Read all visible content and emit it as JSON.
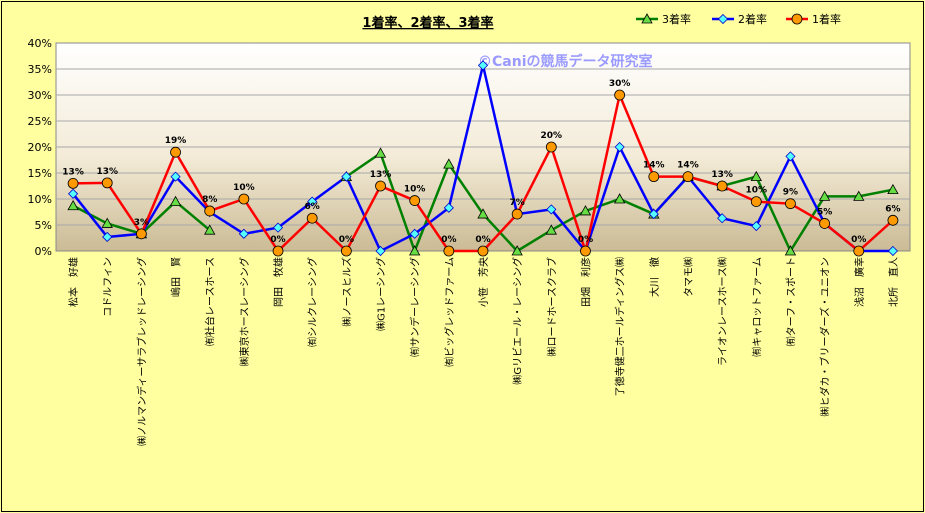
{
  "chart_data": {
    "type": "line",
    "title": "1着率、2着率、3着率",
    "watermark": "©Caniの競馬データ研究室",
    "ylim": [
      0,
      40
    ],
    "y_ticks": [
      "0%",
      "5%",
      "10%",
      "15%",
      "20%",
      "25%",
      "30%",
      "35%",
      "40%"
    ],
    "grid": true,
    "legend_position": "top-right",
    "categories": [
      "松本　好雄",
      "コドルフィン",
      "㈱ノルマンディーサラブレッドレーシング",
      "嶋田　賢",
      "㈲社台レースホース",
      "㈱東京ホースレーシング",
      "岡田　牧雄",
      "㈲シルクレーシング",
      "㈱ノースヒルズ",
      "㈱G1レーシング",
      "㈲サンデーレーシング",
      "㈲ビッグレッドファーム",
      "小笹　芳央",
      "㈱Gリビエール・レーシング",
      "㈱ロードホースクラブ",
      "田畑　利彦",
      "了徳寺健二ホールディングス㈱",
      "大川　徹",
      "タマモ㈱",
      "ライオンレースホース㈱",
      "㈲キャロットファーム",
      "㈲ターフ・スポート",
      "㈱ヒダカ・ブリーダーズ・ユニオン",
      "浅沼　廣幸",
      "北所　直人"
    ],
    "series": [
      {
        "name": "3着率",
        "color": "#008000",
        "marker": "triangle",
        "values": [
          8.7,
          5.3,
          3.3,
          9.5,
          4.0,
          null,
          null,
          null,
          14.3,
          18.8,
          0,
          16.7,
          7.1,
          0,
          4.0,
          7.7,
          10.0,
          7.1,
          14.3,
          12.5,
          14.3,
          0,
          10.5,
          10.5,
          11.8
        ]
      },
      {
        "name": "2着率",
        "color": "#0000ff",
        "marker": "diamond",
        "values": [
          11.0,
          2.7,
          3.3,
          14.3,
          7.5,
          3.3,
          4.5,
          9.5,
          14.3,
          0,
          3.3,
          8.3,
          35.7,
          7.1,
          8.0,
          0,
          20.0,
          7.1,
          14.3,
          6.3,
          4.8,
          18.2,
          5.3,
          0,
          0
        ]
      },
      {
        "name": "1着率",
        "color": "#ff0000",
        "marker": "circle",
        "values": [
          13.0,
          13.1,
          3.3,
          19.0,
          7.7,
          10.0,
          0,
          6.3,
          0,
          12.5,
          9.7,
          0,
          0,
          7.1,
          20.0,
          0,
          30.0,
          14.3,
          14.3,
          12.5,
          9.5,
          9.1,
          5.3,
          0,
          5.9
        ]
      }
    ],
    "data_labels": [
      "13%",
      "13%",
      "3%",
      "19%",
      "8%",
      "10%",
      "0%",
      "6%",
      "0%",
      "13%",
      "10%",
      "0%",
      "0%",
      "7%",
      "20%",
      "0%",
      "30%",
      "14%",
      "14%",
      "13%",
      "10%",
      "9%",
      "5%",
      "0%",
      "6%"
    ]
  }
}
